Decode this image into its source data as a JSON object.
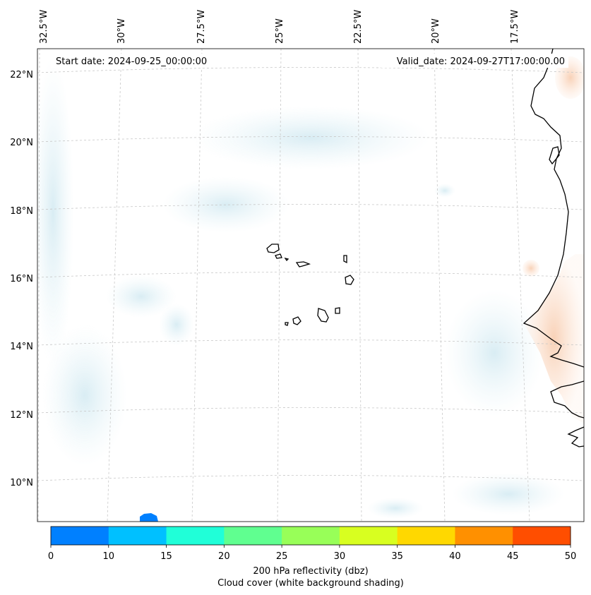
{
  "map": {
    "start_date": "Start date: 2024-09-25_00:00:00",
    "valid_date": "Valid_date: 2024-09-27T17:00:00.00",
    "lon_labels": [
      "32.5°W",
      "30°W",
      "27.5°W",
      "25°W",
      "22.5°W",
      "20°W",
      "17.5°W"
    ],
    "lat_labels": [
      "22°N",
      "20°N",
      "18°N",
      "16°N",
      "14°N",
      "12°N",
      "10°N"
    ],
    "colors": {
      "cloud_shading": "#d5ecf3",
      "land_warm": "#fbd9c4",
      "coastline": "#000000",
      "gridline": "#c8c8c8"
    }
  },
  "colorbar": {
    "ticks": [
      "0",
      "10",
      "15",
      "20",
      "25",
      "30",
      "35",
      "40",
      "45",
      "50"
    ],
    "colors": [
      "#0080ff",
      "#00c0ff",
      "#20ffd8",
      "#60ff90",
      "#98ff58",
      "#d8ff20",
      "#ffd800",
      "#ff9000",
      "#ff4e00"
    ],
    "label_line1": "200 hPa reflectivity (dbz)",
    "label_line2": "Cloud cover (white background shading)"
  },
  "legend_icons": {
    "reflectivity_blob": "small-blue-reflectivity-patch"
  }
}
